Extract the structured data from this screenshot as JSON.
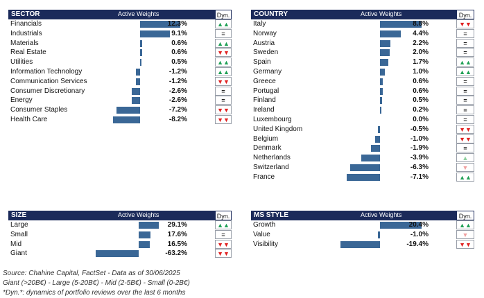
{
  "header_labels": {
    "active_weights": "Active Weights",
    "dyn": "Dyn."
  },
  "colors": {
    "header_bg": "#1b2a5a",
    "bar": "#3a6796",
    "up": "#1fa055",
    "down": "#e02020"
  },
  "sector": {
    "title": "SECTOR",
    "rows": [
      {
        "label": "Financials",
        "value": 12.3,
        "value_text": "12.3%",
        "dyn": "up2"
      },
      {
        "label": "Industrials",
        "value": 9.1,
        "value_text": "9.1%",
        "dyn": "eq"
      },
      {
        "label": "Materials",
        "value": 0.6,
        "value_text": "0.6%",
        "dyn": "up2"
      },
      {
        "label": "Real Estate",
        "value": 0.6,
        "value_text": "0.6%",
        "dyn": "down2"
      },
      {
        "label": "Utilities",
        "value": 0.5,
        "value_text": "0.5%",
        "dyn": "up2"
      },
      {
        "label": "Information Technology",
        "value": -1.2,
        "value_text": "-1.2%",
        "dyn": "up2"
      },
      {
        "label": "Communication Services",
        "value": -1.2,
        "value_text": "-1.2%",
        "dyn": "down2"
      },
      {
        "label": "Consumer Discretionary",
        "value": -2.6,
        "value_text": "-2.6%",
        "dyn": "eq"
      },
      {
        "label": "Energy",
        "value": -2.6,
        "value_text": "-2.6%",
        "dyn": "eq"
      },
      {
        "label": "Consumer Staples",
        "value": -7.2,
        "value_text": "-7.2%",
        "dyn": "down2"
      },
      {
        "label": "Health Care",
        "value": -8.2,
        "value_text": "-8.2%",
        "dyn": "down2"
      }
    ]
  },
  "country": {
    "title": "COUNTRY",
    "rows": [
      {
        "label": "Italy",
        "value": 8.8,
        "value_text": "8.8%",
        "dyn": "down2"
      },
      {
        "label": "Norway",
        "value": 4.4,
        "value_text": "4.4%",
        "dyn": "eq"
      },
      {
        "label": "Austria",
        "value": 2.2,
        "value_text": "2.2%",
        "dyn": "eq"
      },
      {
        "label": "Sweden",
        "value": 2.0,
        "value_text": "2.0%",
        "dyn": "eq"
      },
      {
        "label": "Spain",
        "value": 1.7,
        "value_text": "1.7%",
        "dyn": "up2"
      },
      {
        "label": "Germany",
        "value": 1.0,
        "value_text": "1.0%",
        "dyn": "up2"
      },
      {
        "label": "Greece",
        "value": 0.6,
        "value_text": "0.6%",
        "dyn": "eq"
      },
      {
        "label": "Portugal",
        "value": 0.6,
        "value_text": "0.6%",
        "dyn": "eq"
      },
      {
        "label": "Finland",
        "value": 0.5,
        "value_text": "0.5%",
        "dyn": "eq"
      },
      {
        "label": "Ireland",
        "value": 0.2,
        "value_text": "0.2%",
        "dyn": "eq"
      },
      {
        "label": "Luxembourg",
        "value": 0.0,
        "value_text": "0.0%",
        "dyn": "eq"
      },
      {
        "label": "United Kingdom",
        "value": -0.5,
        "value_text": "-0.5%",
        "dyn": "down2"
      },
      {
        "label": "Belgium",
        "value": -1.0,
        "value_text": "-1.0%",
        "dyn": "down2"
      },
      {
        "label": "Denmark",
        "value": -1.9,
        "value_text": "-1.9%",
        "dyn": "eq"
      },
      {
        "label": "Netherlands",
        "value": -3.9,
        "value_text": "-3.9%",
        "dyn": "up1"
      },
      {
        "label": "Switzerland",
        "value": -6.3,
        "value_text": "-6.3%",
        "dyn": "down1"
      },
      {
        "label": "France",
        "value": -7.1,
        "value_text": "-7.1%",
        "dyn": "up2"
      }
    ]
  },
  "size": {
    "title": "SIZE",
    "rows": [
      {
        "label": "Large",
        "value": 29.1,
        "value_text": "29.1%",
        "dyn": "up2"
      },
      {
        "label": "Small",
        "value": 17.6,
        "value_text": "17.6%",
        "dyn": "eq"
      },
      {
        "label": "Mid",
        "value": 16.5,
        "value_text": "16.5%",
        "dyn": "down2"
      },
      {
        "label": "Giant",
        "value": -63.2,
        "value_text": "-63.2%",
        "dyn": "down2"
      }
    ]
  },
  "style": {
    "title": "MS STYLE",
    "rows": [
      {
        "label": "Growth",
        "value": 20.4,
        "value_text": "20.4%",
        "dyn": "up2"
      },
      {
        "label": "Value",
        "value": -1.0,
        "value_text": "-1.0%",
        "dyn": "down1"
      },
      {
        "label": "Visibility",
        "value": -19.4,
        "value_text": "-19.4%",
        "dyn": "down2"
      }
    ]
  },
  "footnotes": {
    "source": "Source: Chahine Capital, FactSet - Data as of 30/06/2025",
    "sizes": "Giant (>20B€) - Large (5-20B€) - Mid (2-5B€) - Small (0-2B€)",
    "dyn": "*Dyn.*: dynamics of portfolio reviews over the last 6 months"
  }
}
